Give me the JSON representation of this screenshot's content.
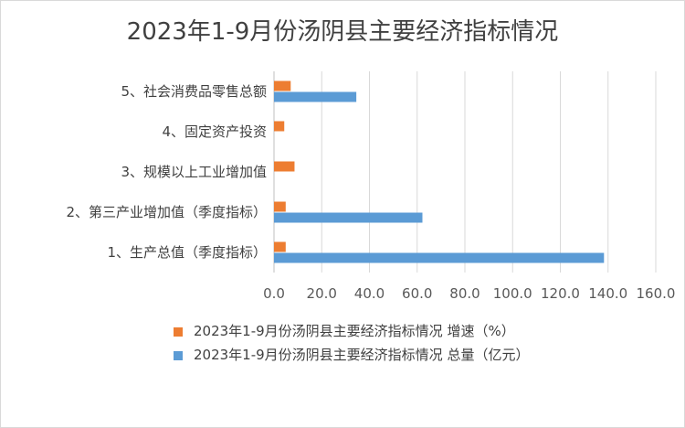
{
  "chart_data": {
    "type": "bar",
    "orientation": "horizontal",
    "title": "2023年1-9月份汤阴县主要经济指标情况",
    "categories": [
      "1、生产总值（季度指标）",
      "2、第三产业增加值（季度指标）",
      "3、规模以上工业增加值",
      "4、固定资产投资",
      "5、社会消费品零售总额"
    ],
    "series": [
      {
        "name": "2023年1-9月份汤阴县主要经济指标情况 增速（%）",
        "color": "#ed7d31",
        "values": [
          4.9,
          4.9,
          8.6,
          4.3,
          7.0
        ]
      },
      {
        "name": "2023年1-9月份汤阴县主要经济指标情况 总量（亿元）",
        "color": "#5b9bd5",
        "values": [
          138.3,
          62.2,
          null,
          null,
          34.5
        ]
      }
    ],
    "xlim": [
      0,
      160
    ],
    "xticks": [
      "0.0",
      "20.0",
      "40.0",
      "60.0",
      "80.0",
      "100.0",
      "120.0",
      "140.0",
      "160.0"
    ],
    "grid": true,
    "legend_position": "bottom"
  }
}
